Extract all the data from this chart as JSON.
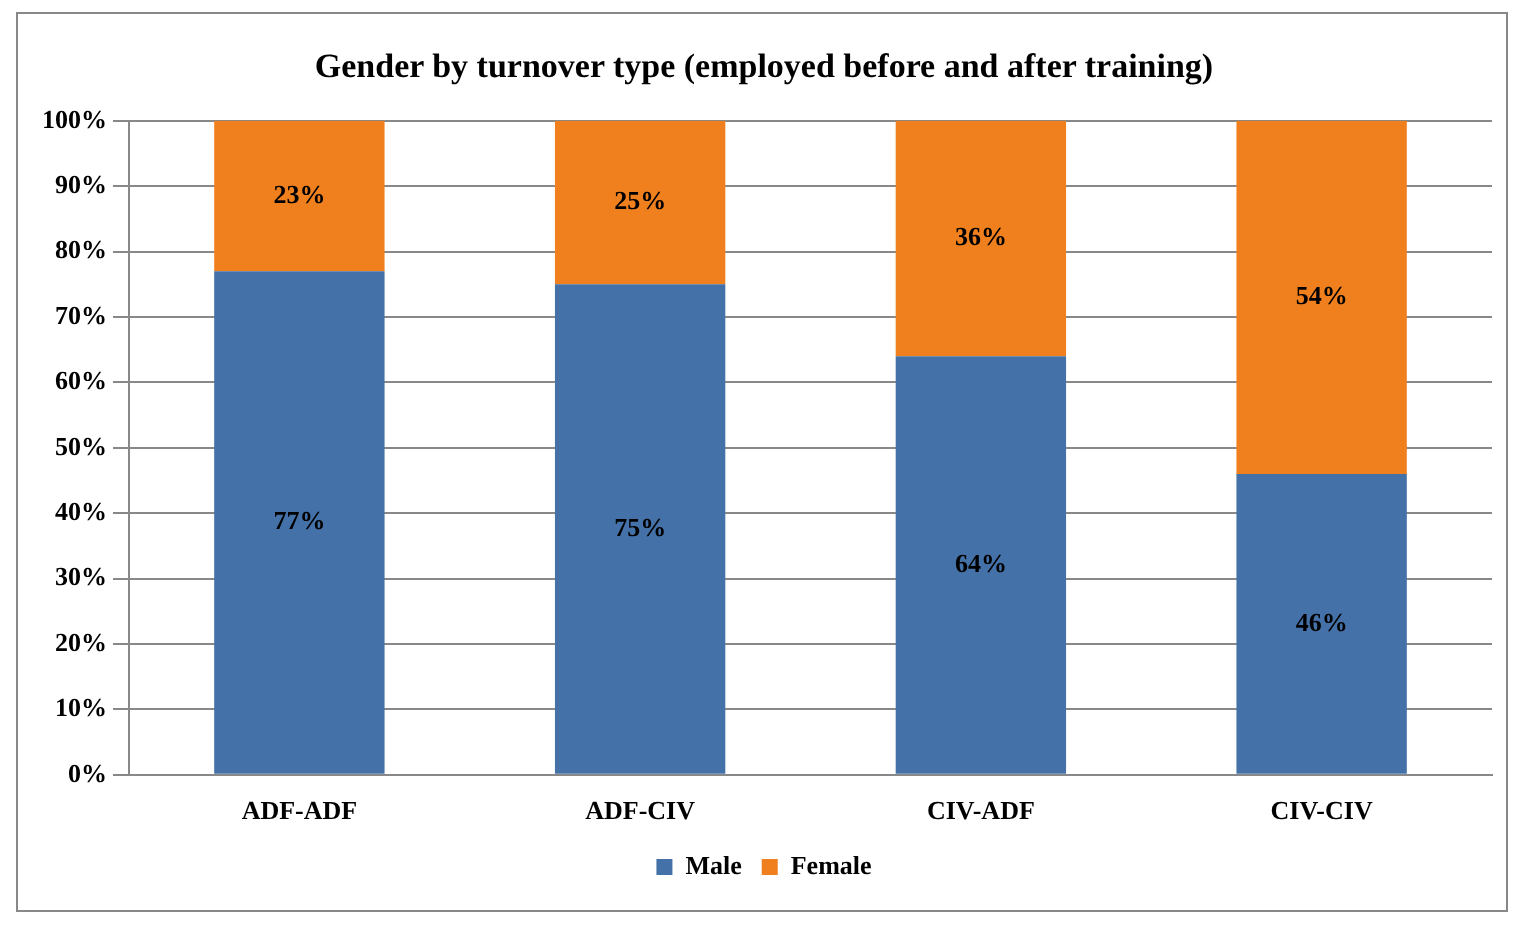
{
  "chart_data": {
    "type": "bar",
    "title": "Gender by turnover type (employed before and after training)",
    "categories": [
      "ADF-ADF",
      "ADF-CIV",
      "CIV-ADF",
      "CIV-CIV"
    ],
    "stacked": true,
    "series": [
      {
        "name": "Male",
        "color": "#4471a8",
        "values": [
          77,
          75,
          64,
          46
        ],
        "value_labels": [
          "77%",
          "75%",
          "64%",
          "46%"
        ]
      },
      {
        "name": "Female",
        "color": "#f0801e",
        "values": [
          23,
          25,
          36,
          54
        ],
        "value_labels": [
          "23%",
          "25%",
          "36%",
          "54%"
        ]
      }
    ],
    "ylim": [
      0,
      100
    ],
    "yticks": [
      {
        "value": 0,
        "label": "0%"
      },
      {
        "value": 10,
        "label": "10%"
      },
      {
        "value": 20,
        "label": "20%"
      },
      {
        "value": 30,
        "label": "30%"
      },
      {
        "value": 40,
        "label": "40%"
      },
      {
        "value": 50,
        "label": "50%"
      },
      {
        "value": 60,
        "label": "60%"
      },
      {
        "value": 70,
        "label": "70%"
      },
      {
        "value": 80,
        "label": "80%"
      },
      {
        "value": 90,
        "label": "90%"
      },
      {
        "value": 100,
        "label": "100%"
      }
    ],
    "grid": "y",
    "legend": "bottom"
  }
}
